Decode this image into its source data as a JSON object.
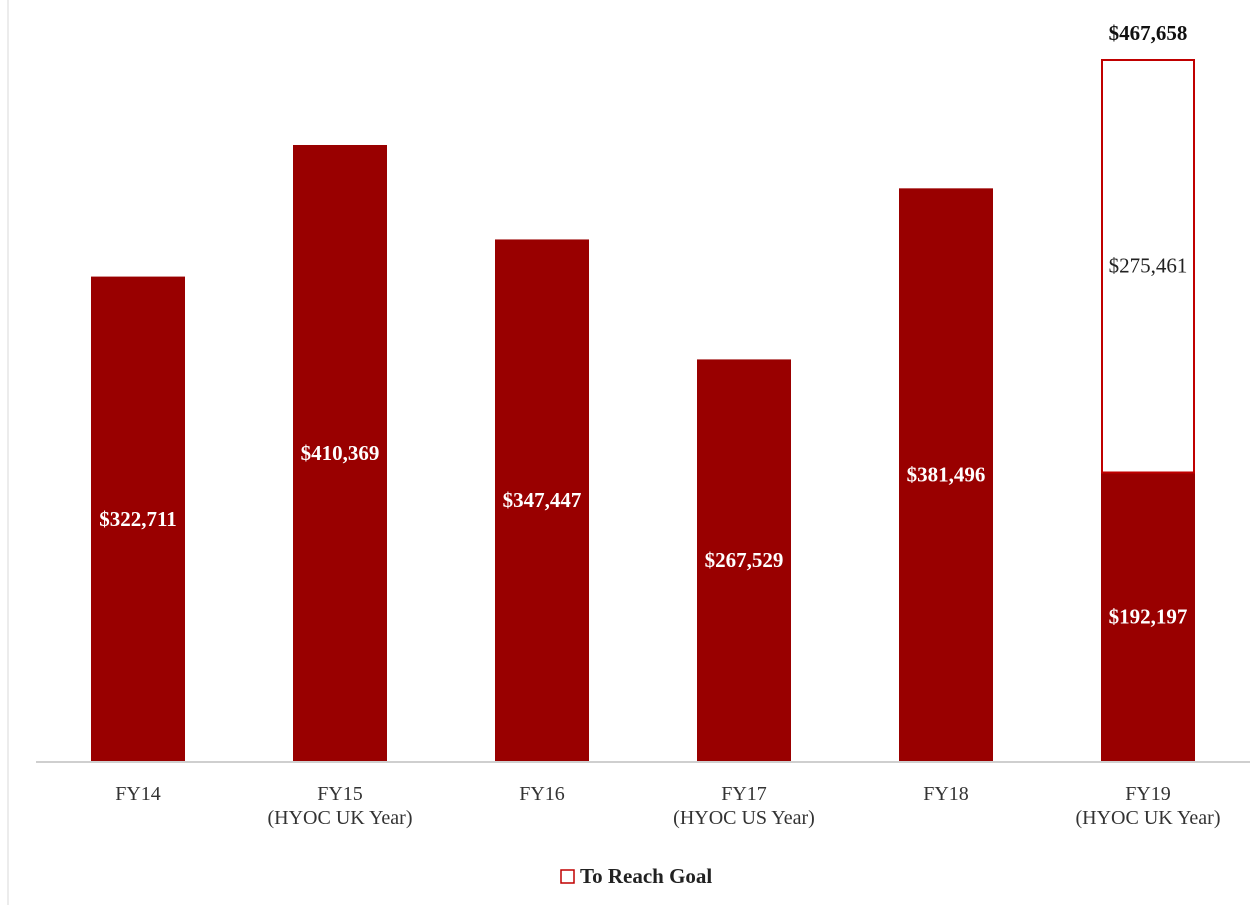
{
  "chart_data": {
    "type": "bar",
    "stacked": true,
    "categories": [
      [
        "FY14"
      ],
      [
        "FY15",
        "(HYOC UK Year)"
      ],
      [
        "FY16"
      ],
      [
        "FY17",
        "(HYOC US Year)"
      ],
      [
        "FY18"
      ],
      [
        "FY19",
        "(HYOC UK Year)"
      ]
    ],
    "series": [
      {
        "values": [
          322711,
          410369,
          347447,
          267529,
          381496,
          192197
        ],
        "labels": [
          "$322,711",
          "$410,369",
          "$347,447",
          "$267,529",
          "$381,496",
          "$192,197"
        ],
        "color": "#990000",
        "style": "filled"
      },
      {
        "name": "To Reach Goal",
        "values": [
          null,
          null,
          null,
          null,
          null,
          275461
        ],
        "labels": [
          "",
          "",
          "",
          "",
          "",
          "$275,461"
        ],
        "color": "#c00000",
        "style": "outline"
      }
    ],
    "totals": [
      "",
      "",
      "",
      "",
      "",
      "$467,658"
    ],
    "ylim": [
      0,
      467658
    ],
    "grid": false,
    "legend": "bottom",
    "title": "",
    "xlabel": "",
    "ylabel": ""
  }
}
